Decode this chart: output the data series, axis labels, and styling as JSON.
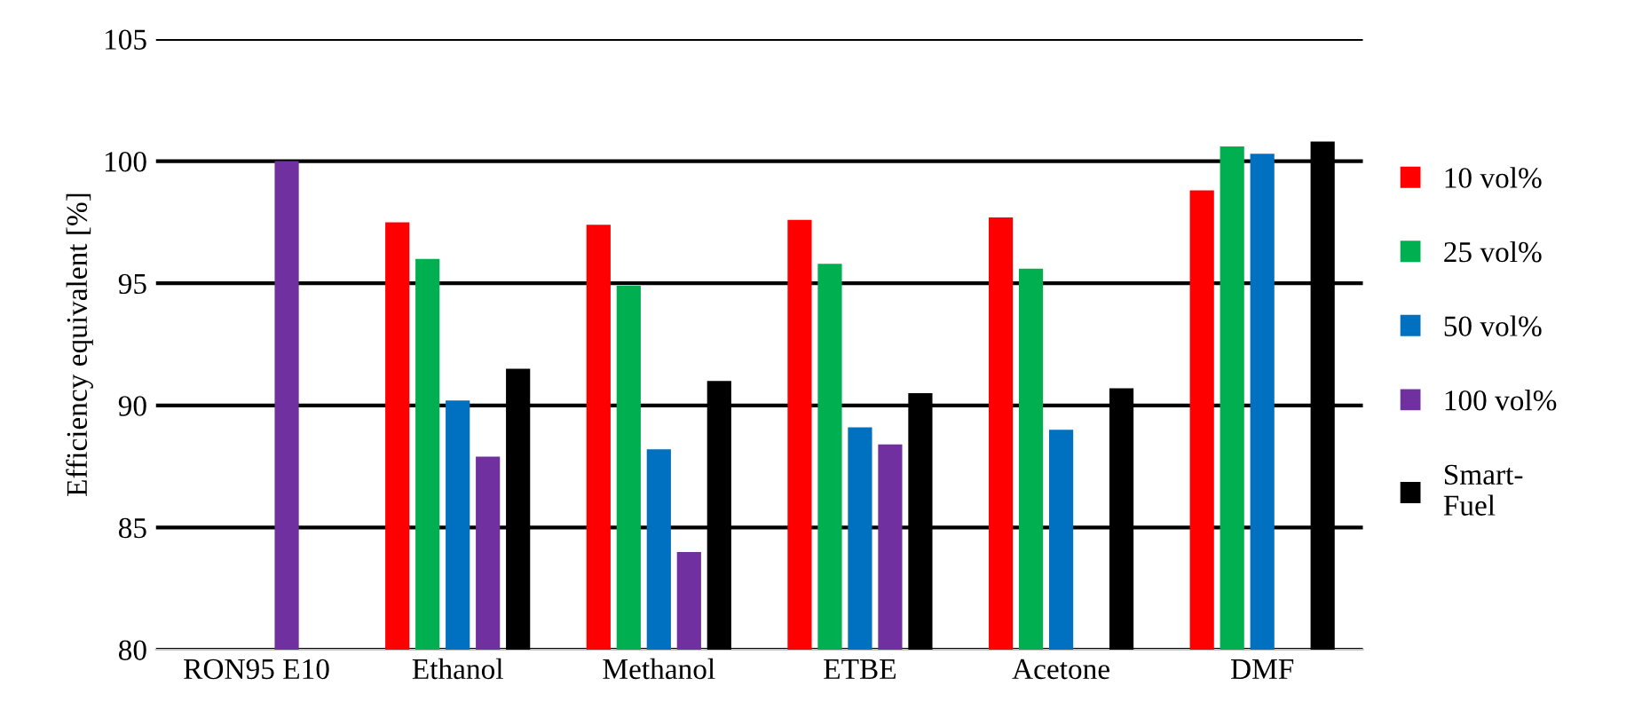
{
  "chart_data": {
    "type": "bar",
    "ylabel": "Efficiency equivalent [%]",
    "categories": [
      "RON95 E10",
      "Ethanol",
      "Methanol",
      "ETBE",
      "Acetone",
      "DMF"
    ],
    "series": [
      {
        "name": "10 vol%",
        "color": "#ff0000",
        "values": [
          null,
          97.5,
          97.4,
          97.6,
          97.7,
          98.8
        ]
      },
      {
        "name": "25 vol%",
        "color": "#00b050",
        "values": [
          null,
          96.0,
          94.9,
          95.8,
          95.6,
          100.6
        ]
      },
      {
        "name": "50 vol%",
        "color": "#0070c0",
        "values": [
          null,
          90.2,
          88.2,
          89.1,
          89.0,
          100.3
        ]
      },
      {
        "name": "100 vol%",
        "color": "#7030a0",
        "values": [
          100,
          87.9,
          84.0,
          88.4,
          null,
          null
        ]
      },
      {
        "name": "Smart-\nFuel",
        "color": "#000000",
        "values": [
          null,
          91.5,
          91.0,
          90.5,
          90.7,
          100.8
        ]
      }
    ],
    "ylim": [
      80,
      105
    ],
    "yticks": [
      80,
      85,
      90,
      95,
      100,
      105
    ],
    "grid": "y",
    "legend": "right"
  }
}
